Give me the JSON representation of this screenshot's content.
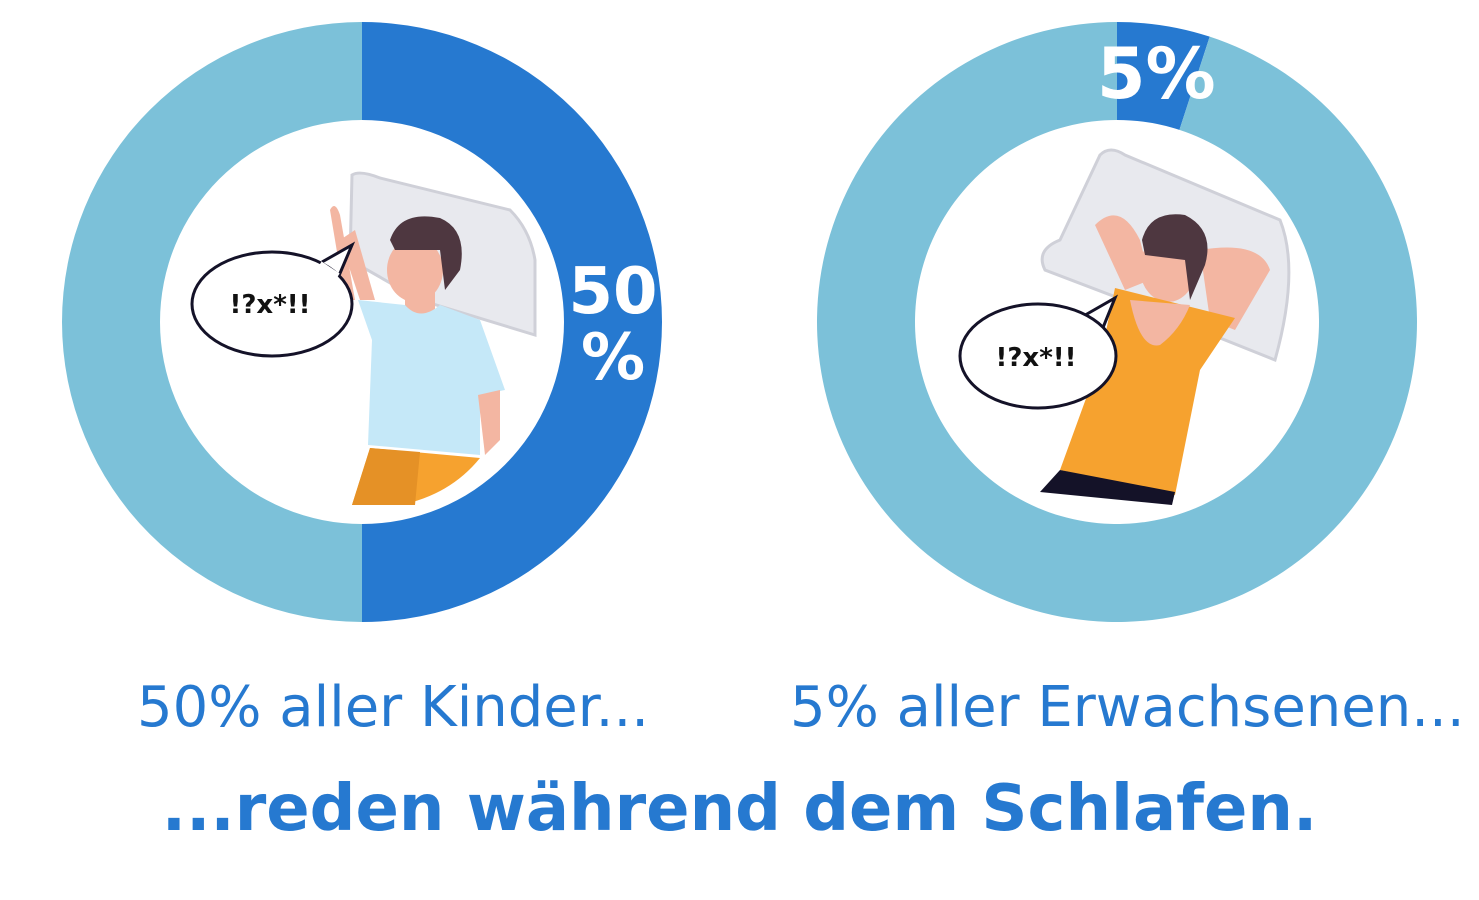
{
  "chart_data": [
    {
      "type": "pie",
      "donut": true,
      "values": [
        50,
        50
      ],
      "highlight_label_lines": [
        "50",
        "%"
      ],
      "caption": "50% aller Kinder...",
      "colors": {
        "highlight": "#2679d0",
        "rest": "#7cc1d9"
      },
      "illustration": "child-sleeping-talking",
      "speech_bubble": "!?x*!!"
    },
    {
      "type": "pie",
      "donut": true,
      "values": [
        5,
        95
      ],
      "highlight_label_lines": [
        "5%"
      ],
      "caption": "5% aller Erwachsenen...",
      "colors": {
        "highlight": "#2679d0",
        "rest": "#7cc1d9"
      },
      "illustration": "adult-sleeping-talking",
      "speech_bubble": "!?x*!!"
    }
  ],
  "subtitle": "...reden während dem Schlafen."
}
